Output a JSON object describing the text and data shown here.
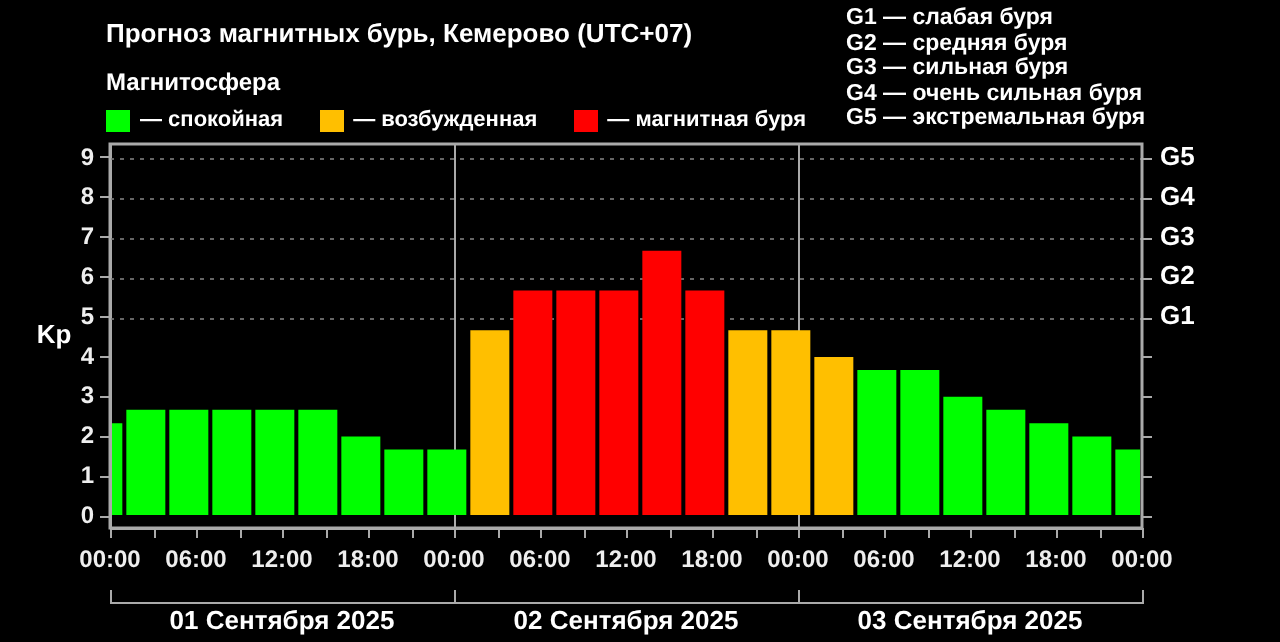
{
  "chart_data": {
    "type": "bar",
    "title": "Прогноз магнитных бурь, Кемерово (UTC+07)",
    "legend_title": "Магнитосфера",
    "ylabel": "Kp",
    "legend": "top left",
    "grid": false,
    "series": [
      {
        "name": "— спокойная",
        "color": "#00ff00",
        "x": [
          "2025-09-01T00:30",
          "2025-09-01T02:30",
          "2025-09-01T05:30",
          "2025-09-01T08:30",
          "2025-09-01T11:30",
          "2025-09-01T14:30",
          "2025-09-01T17:30",
          "2025-09-01T20:30",
          "2025-09-01T23:30",
          "2025-09-03T05:30",
          "2025-09-03T08:30",
          "2025-09-03T11:30",
          "2025-09-03T14:30",
          "2025-09-03T17:30",
          "2025-09-03T20:30",
          "2025-09-03T23:00"
        ],
        "values": [
          2.33,
          2.67,
          2.67,
          2.67,
          2.67,
          2.67,
          2.0,
          1.67,
          1.67,
          3.67,
          3.67,
          3.0,
          2.67,
          2.33,
          2.0,
          1.67
        ]
      },
      {
        "name": "— возбужденная",
        "color": "#ffbf00",
        "x": [
          "2025-09-02T02:30",
          "2025-09-02T20:30",
          "2025-09-02T23:30",
          "2025-09-03T02:30"
        ],
        "values": [
          4.67,
          4.67,
          4.67,
          4.0
        ]
      },
      {
        "name": "— магнитная буря",
        "color": "#ff0000",
        "x": [
          "2025-09-02T05:30",
          "2025-09-02T08:30",
          "2025-09-02T11:30",
          "2025-09-02T14:30",
          "2025-09-02T17:30"
        ],
        "values": [
          5.67,
          5.67,
          5.67,
          6.67,
          5.67
        ]
      }
    ],
    "xlim": [
      "2025-09-01T00:00",
      "2025-09-04T00:00"
    ],
    "xticks": [
      {
        "value": "2025-09-01T00:00",
        "label": "00:00"
      },
      {
        "value": "2025-09-01T03:00",
        "label": null
      },
      {
        "value": "2025-09-01T06:00",
        "label": "06:00"
      },
      {
        "value": "2025-09-01T09:00",
        "label": null
      },
      {
        "value": "2025-09-01T12:00",
        "label": "12:00"
      },
      {
        "value": "2025-09-01T15:00",
        "label": null
      },
      {
        "value": "2025-09-01T18:00",
        "label": "18:00"
      },
      {
        "value": "2025-09-01T21:00",
        "label": null
      },
      {
        "value": "2025-09-02T00:00",
        "label": "00:00"
      },
      {
        "value": "2025-09-02T03:00",
        "label": null
      },
      {
        "value": "2025-09-02T06:00",
        "label": "06:00"
      },
      {
        "value": "2025-09-02T09:00",
        "label": null
      },
      {
        "value": "2025-09-02T12:00",
        "label": "12:00"
      },
      {
        "value": "2025-09-02T15:00",
        "label": null
      },
      {
        "value": "2025-09-02T18:00",
        "label": "18:00"
      },
      {
        "value": "2025-09-02T21:00",
        "label": null
      },
      {
        "value": "2025-09-03T00:00",
        "label": "00:00"
      },
      {
        "value": "2025-09-03T03:00",
        "label": null
      },
      {
        "value": "2025-09-03T06:00",
        "label": "06:00"
      },
      {
        "value": "2025-09-03T09:00",
        "label": null
      },
      {
        "value": "2025-09-03T12:00",
        "label": "12:00"
      },
      {
        "value": "2025-09-03T15:00",
        "label": null
      },
      {
        "value": "2025-09-03T18:00",
        "label": "18:00"
      },
      {
        "value": "2025-09-03T21:00",
        "label": null
      },
      {
        "value": "2025-09-04T00:00",
        "label": "00:00"
      }
    ],
    "ylim": [
      -0.3,
      9.35
    ],
    "yticks": [
      0,
      1,
      2,
      3,
      4,
      5,
      6,
      7,
      8,
      9
    ],
    "ref_lines": [
      {
        "axis": "y",
        "value": 5,
        "label": "G1",
        "color": "#666666",
        "line_style": "dotted"
      },
      {
        "axis": "y",
        "value": 6,
        "label": "G2",
        "color": "#666666",
        "line_style": "dotted"
      },
      {
        "axis": "y",
        "value": 7,
        "label": "G3",
        "color": "#666666",
        "line_style": "dotted"
      },
      {
        "axis": "y",
        "value": 8,
        "label": "G4",
        "color": "#666666",
        "line_style": "dotted"
      },
      {
        "axis": "y",
        "value": 9,
        "label": "G5",
        "color": "#666666",
        "line_style": "dotted"
      },
      {
        "axis": "x",
        "value": "2025-09-02T00:00",
        "color": "#aaaaaa",
        "line_style": "solid"
      },
      {
        "axis": "x",
        "value": "2025-09-03T00:00",
        "color": "#aaaaaa",
        "line_style": "solid"
      }
    ],
    "annotations": [
      "01 Сентября 2025",
      "02 Сентября 2025",
      "03 Сентября 2025",
      "G1 — слабая буря",
      "G2 — средняя буря",
      "G3 — сильная буря",
      "G4 — очень сильная буря",
      "G5 — экстремальная буря"
    ]
  }
}
